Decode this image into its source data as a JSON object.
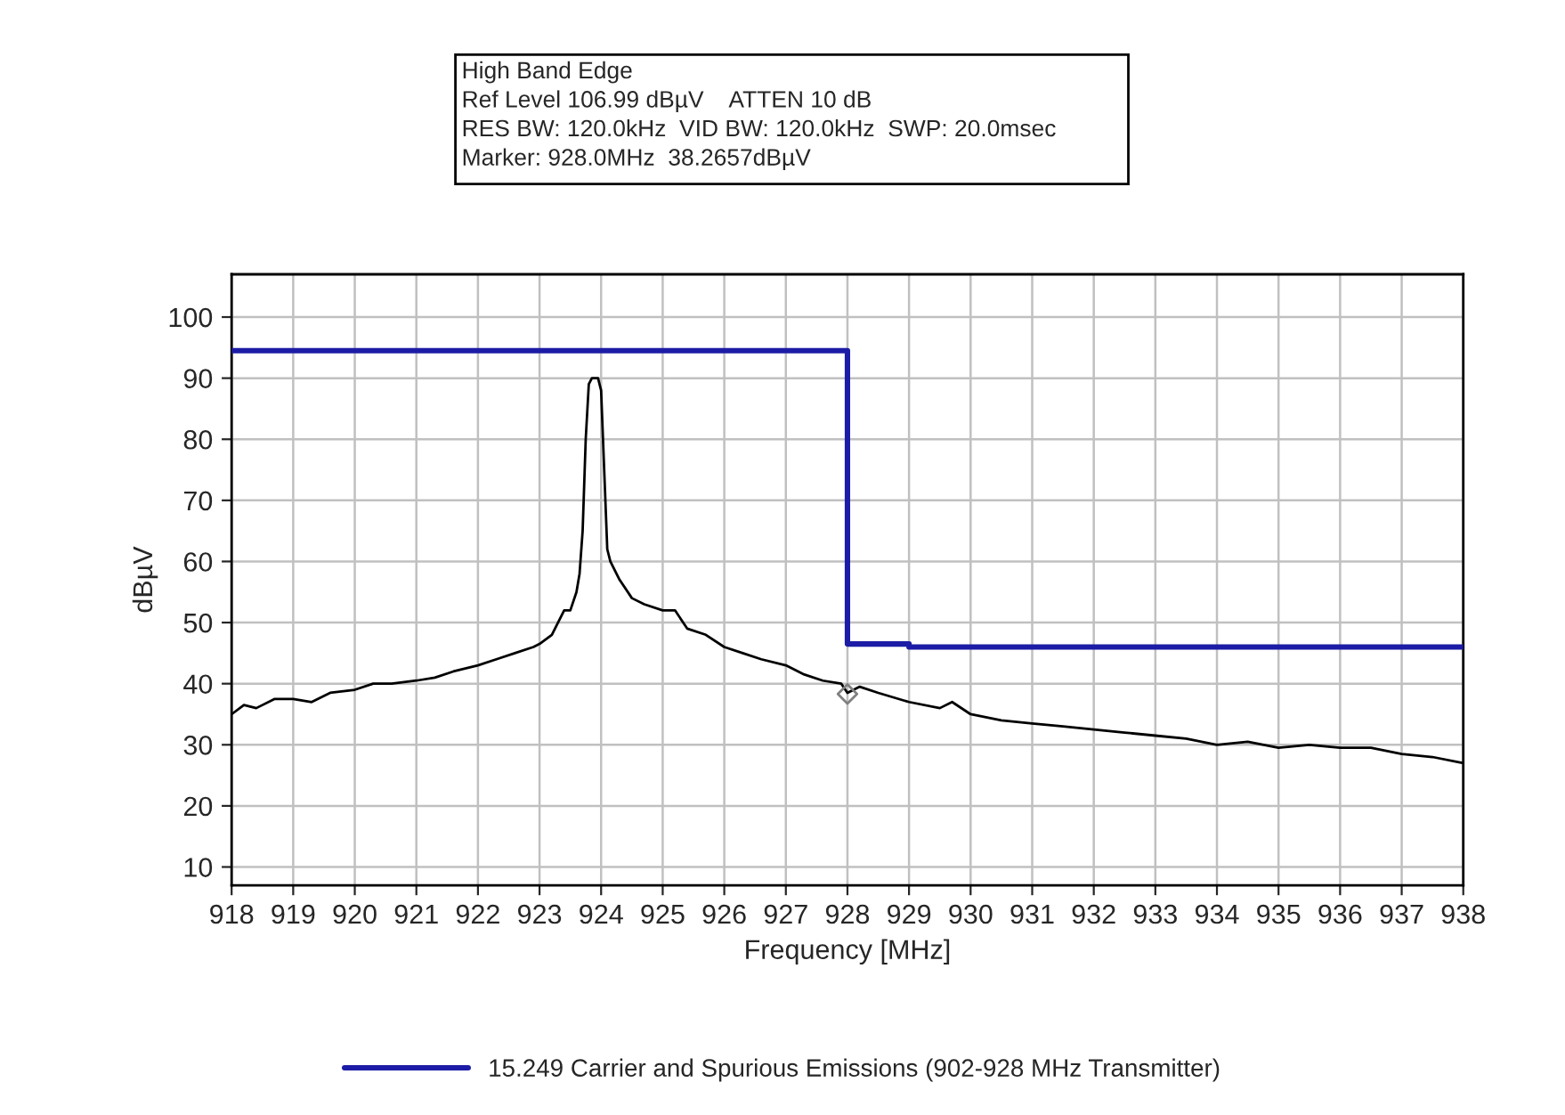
{
  "chart_data": {
    "type": "line",
    "title": "High Band Edge",
    "annotations": [
      "Ref Level 106.99 dBµV    ATTEN 10 dB",
      "RES BW: 120.0kHz  VID BW: 120.0kHz  SWP: 20.0msec",
      "Marker: 928.0MHz  38.2657dBµV"
    ],
    "xlabel": "Frequency [MHz]",
    "ylabel": "dBµV",
    "series": [
      {
        "color": "#000000",
        "x": [
          918.0,
          918.2,
          918.4,
          918.7,
          919.0,
          919.3,
          919.6,
          920.0,
          920.3,
          920.6,
          921.0,
          921.3,
          921.6,
          922.0,
          922.3,
          922.6,
          922.9,
          923.0,
          923.2,
          923.3,
          923.4,
          923.5,
          923.6,
          923.65,
          923.7,
          923.75,
          923.8,
          923.85,
          923.95,
          924.0,
          924.05,
          924.1,
          924.15,
          924.3,
          924.5,
          924.7,
          925.0,
          925.2,
          925.4,
          925.7,
          926.0,
          926.3,
          926.6,
          927.0,
          927.3,
          927.6,
          927.9,
          928.0,
          928.2,
          928.5,
          929.0,
          929.5,
          929.7,
          930.0,
          930.5,
          931.0,
          931.5,
          932.0,
          932.5,
          933.0,
          933.5,
          934.0,
          934.5,
          935.0,
          935.5,
          936.0,
          936.5,
          937.0,
          937.5,
          938.0
        ],
        "values": [
          35,
          36.5,
          36,
          37.5,
          37.5,
          37,
          38.5,
          39,
          40,
          40,
          40.5,
          41,
          42,
          43,
          44,
          45,
          46,
          46.5,
          48,
          50,
          52,
          52,
          55,
          58,
          65,
          80,
          89,
          90,
          90,
          88,
          75,
          62,
          60,
          57,
          54,
          53,
          52,
          52,
          49,
          48,
          46,
          45,
          44,
          43,
          41.5,
          40.5,
          40,
          38.5,
          39.5,
          38.5,
          37,
          36,
          37,
          35,
          34,
          33.5,
          33,
          32.5,
          32,
          31.5,
          31,
          30,
          30.5,
          29.5,
          30,
          29.5,
          29.5,
          28.5,
          28,
          27
        ]
      },
      {
        "type": "line",
        "name": "15.249 Carrier and Spurious Emissions (902-928 MHz Transmitter)",
        "color": "#1c1ca6",
        "x": [
          918,
          928,
          928,
          929,
          929,
          938
        ],
        "values": [
          94.5,
          94.5,
          46.5,
          46.5,
          46,
          46
        ]
      },
      {
        "type": "scatter",
        "color": "#808080",
        "marker": "diamond",
        "x": [
          928.0
        ],
        "values": [
          38.3
        ]
      }
    ],
    "xlim": [
      918,
      938
    ],
    "ylim": [
      7,
      107
    ],
    "xticks": [
      918,
      919,
      920,
      921,
      922,
      923,
      924,
      925,
      926,
      927,
      928,
      929,
      930,
      931,
      932,
      933,
      934,
      935,
      936,
      937,
      938
    ],
    "yticks": [
      10,
      20,
      30,
      40,
      50,
      60,
      70,
      80,
      90,
      100
    ],
    "grid": true,
    "legend": "bottom"
  }
}
